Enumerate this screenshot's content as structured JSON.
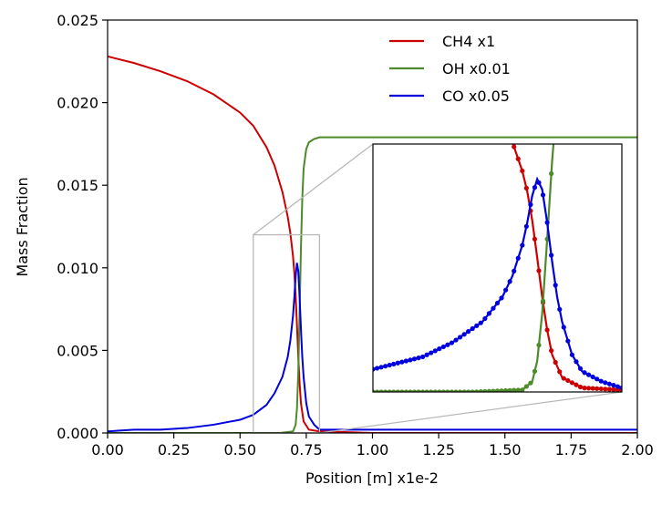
{
  "chart_data": {
    "type": "line",
    "title": "",
    "xlabel": "Position [m] x1e-2",
    "ylabel": "Mass Fraction",
    "xlim": [
      0.0,
      2.0
    ],
    "ylim": [
      0.0,
      0.025
    ],
    "grid": false,
    "legend_position": "top-right",
    "x_ticks": [
      0.0,
      0.25,
      0.5,
      0.75,
      1.0,
      1.25,
      1.5,
      1.75,
      2.0
    ],
    "x_tick_labels": [
      "0.00",
      "0.25",
      "0.50",
      "0.75",
      "1.00",
      "1.25",
      "1.50",
      "1.75",
      "2.00"
    ],
    "y_ticks": [
      0.0,
      0.005,
      0.01,
      0.015,
      0.02,
      0.025
    ],
    "y_tick_labels": [
      "0.000",
      "0.005",
      "0.010",
      "0.015",
      "0.020",
      "0.025"
    ],
    "series": [
      {
        "name": "CH4 x1",
        "color": "#cc0000",
        "x": [
          0.0,
          0.1,
          0.2,
          0.3,
          0.4,
          0.5,
          0.55,
          0.6,
          0.63,
          0.66,
          0.68,
          0.69,
          0.7,
          0.705,
          0.71,
          0.715,
          0.72,
          0.725,
          0.73,
          0.74,
          0.76,
          0.8,
          1.0,
          1.5,
          2.0
        ],
        "y": [
          0.0228,
          0.0224,
          0.0219,
          0.0213,
          0.0205,
          0.0194,
          0.0186,
          0.0173,
          0.0162,
          0.0146,
          0.0131,
          0.0121,
          0.0107,
          0.0097,
          0.0083,
          0.0065,
          0.0046,
          0.003,
          0.0018,
          0.0007,
          0.0002,
          0.0001,
          0.0,
          0.0,
          0.0
        ]
      },
      {
        "name": "OH x0.01",
        "color": "#4c8a2a",
        "x": [
          0.0,
          0.5,
          0.65,
          0.7,
          0.71,
          0.715,
          0.72,
          0.725,
          0.73,
          0.735,
          0.74,
          0.75,
          0.76,
          0.78,
          0.8,
          1.0,
          1.5,
          2.0
        ],
        "y": [
          0.0,
          0.0,
          0.0,
          0.0001,
          0.0005,
          0.0015,
          0.0038,
          0.0074,
          0.0112,
          0.0142,
          0.016,
          0.0172,
          0.0176,
          0.0178,
          0.0179,
          0.0179,
          0.0179,
          0.0179
        ]
      },
      {
        "name": "CO x0.05",
        "color": "#0000dd",
        "x": [
          0.0,
          0.1,
          0.2,
          0.3,
          0.4,
          0.5,
          0.55,
          0.6,
          0.63,
          0.66,
          0.68,
          0.69,
          0.7,
          0.705,
          0.71,
          0.715,
          0.72,
          0.725,
          0.73,
          0.735,
          0.74,
          0.75,
          0.76,
          0.78,
          0.8,
          1.0,
          1.5,
          2.0
        ],
        "y": [
          0.0001,
          0.0002,
          0.0002,
          0.0003,
          0.0005,
          0.0008,
          0.0011,
          0.0017,
          0.0024,
          0.0034,
          0.0046,
          0.0056,
          0.0071,
          0.0082,
          0.0095,
          0.0103,
          0.0098,
          0.0082,
          0.0063,
          0.0046,
          0.0034,
          0.0018,
          0.001,
          0.0005,
          0.0002,
          0.0002,
          0.0002,
          0.0002
        ]
      }
    ],
    "inset": {
      "xlim": [
        0.55,
        0.8
      ],
      "ylim": [
        0.0,
        0.012
      ],
      "markers": true,
      "marker_count": 60
    }
  }
}
